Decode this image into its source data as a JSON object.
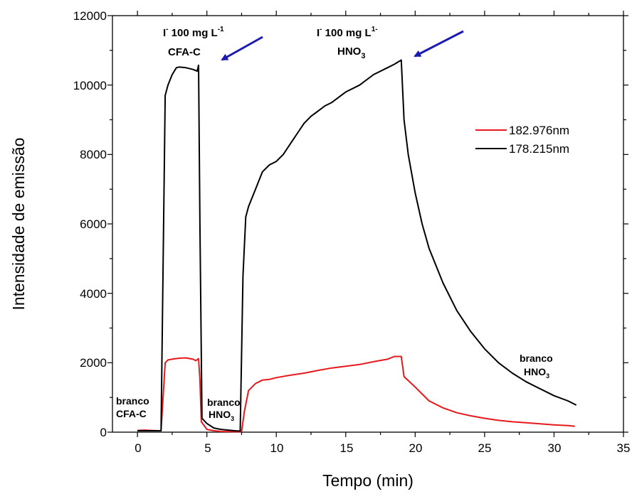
{
  "chart_data": {
    "type": "line",
    "xlabel": "Tempo (min)",
    "ylabel": "Intensidade de emissão",
    "xlim": [
      -1.8,
      35
    ],
    "ylim": [
      0,
      12000
    ],
    "xticks": [
      "0",
      "5",
      "10",
      "15",
      "20",
      "25",
      "30",
      "35"
    ],
    "yticks": [
      "0",
      "2000",
      "4000",
      "6000",
      "8000",
      "10000",
      "12000"
    ],
    "legend_position": "upper-right",
    "series": [
      {
        "name": "182.976nm",
        "color": "#e8191c",
        "points": [
          [
            0,
            50
          ],
          [
            0.5,
            60
          ],
          [
            1,
            50
          ],
          [
            1.5,
            40
          ],
          [
            1.7,
            40
          ],
          [
            2,
            2000
          ],
          [
            2.2,
            2080
          ],
          [
            2.6,
            2110
          ],
          [
            3,
            2130
          ],
          [
            3.5,
            2140
          ],
          [
            4,
            2100
          ],
          [
            4.2,
            2060
          ],
          [
            4.4,
            2120
          ],
          [
            4.5,
            1500
          ],
          [
            4.6,
            300
          ],
          [
            5,
            80
          ],
          [
            5.5,
            40
          ],
          [
            6,
            20
          ],
          [
            7.4,
            10
          ],
          [
            7.5,
            30
          ],
          [
            7.7,
            600
          ],
          [
            8,
            1200
          ],
          [
            8.5,
            1400
          ],
          [
            9,
            1500
          ],
          [
            9.5,
            1520
          ],
          [
            10,
            1570
          ],
          [
            11,
            1640
          ],
          [
            12,
            1700
          ],
          [
            13,
            1780
          ],
          [
            14,
            1850
          ],
          [
            15,
            1900
          ],
          [
            16,
            1950
          ],
          [
            17,
            2030
          ],
          [
            18,
            2100
          ],
          [
            18.5,
            2180
          ],
          [
            19,
            2180
          ],
          [
            19.2,
            1600
          ],
          [
            20,
            1300
          ],
          [
            21,
            900
          ],
          [
            22,
            700
          ],
          [
            23,
            560
          ],
          [
            24,
            470
          ],
          [
            25,
            400
          ],
          [
            26,
            340
          ],
          [
            27,
            300
          ],
          [
            28,
            270
          ],
          [
            29,
            240
          ],
          [
            30,
            210
          ],
          [
            31,
            190
          ],
          [
            31.5,
            170
          ]
        ]
      },
      {
        "name": "178.215nm",
        "color": "#000000",
        "points": [
          [
            0,
            40
          ],
          [
            1,
            40
          ],
          [
            1.7,
            40
          ],
          [
            2,
            9700
          ],
          [
            2.2,
            10000
          ],
          [
            2.5,
            10300
          ],
          [
            2.8,
            10500
          ],
          [
            3,
            10520
          ],
          [
            3.5,
            10500
          ],
          [
            4,
            10450
          ],
          [
            4.3,
            10400
          ],
          [
            4.4,
            10570
          ],
          [
            4.5,
            6000
          ],
          [
            4.65,
            400
          ],
          [
            5,
            250
          ],
          [
            5.5,
            120
          ],
          [
            6,
            80
          ],
          [
            7,
            40
          ],
          [
            7.4,
            30
          ],
          [
            7.6,
            4500
          ],
          [
            7.8,
            6200
          ],
          [
            8,
            6500
          ],
          [
            8.5,
            7000
          ],
          [
            9,
            7500
          ],
          [
            9.5,
            7700
          ],
          [
            10,
            7800
          ],
          [
            10.5,
            8000
          ],
          [
            11,
            8300
          ],
          [
            11.5,
            8600
          ],
          [
            12,
            8900
          ],
          [
            12.5,
            9100
          ],
          [
            13,
            9250
          ],
          [
            13.5,
            9400
          ],
          [
            14,
            9500
          ],
          [
            15,
            9800
          ],
          [
            16,
            10000
          ],
          [
            17,
            10300
          ],
          [
            18,
            10500
          ],
          [
            18.5,
            10600
          ],
          [
            19,
            10720
          ],
          [
            19.2,
            9000
          ],
          [
            19.5,
            8000
          ],
          [
            20,
            6900
          ],
          [
            20.5,
            6000
          ],
          [
            21,
            5300
          ],
          [
            21.5,
            4800
          ],
          [
            22,
            4300
          ],
          [
            23,
            3500
          ],
          [
            24,
            2900
          ],
          [
            25,
            2400
          ],
          [
            26,
            2000
          ],
          [
            27,
            1700
          ],
          [
            28,
            1450
          ],
          [
            29,
            1250
          ],
          [
            30,
            1050
          ],
          [
            31,
            900
          ],
          [
            31.6,
            780
          ]
        ]
      }
    ]
  },
  "annotations": {
    "a1_top": "I",
    "a1_sup1": "-",
    "a1_mid": " 100 mg L",
    "a1_sup2": "-1",
    "a1_bottom": "CFA-C",
    "a2_top": "I",
    "a2_sup1": "-",
    "a2_mid": " 100 mg L",
    "a2_sup2": "1-",
    "a2_bottom": "HNO",
    "a2_sub": "3",
    "branco": "branco",
    "cfac": "CFA-C",
    "hno": "HNO",
    "sub3": "3"
  },
  "arrow_color": "#1b1bb0"
}
